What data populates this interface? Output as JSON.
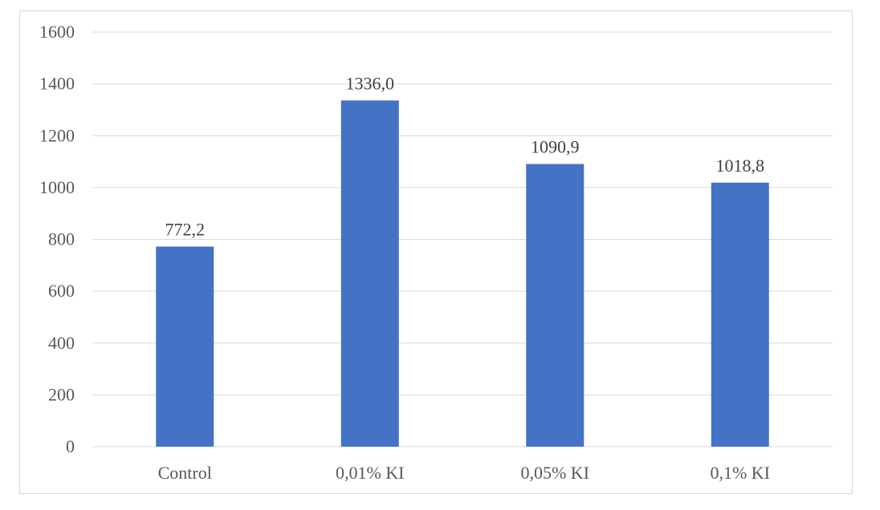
{
  "chart_data": {
    "type": "bar",
    "categories": [
      "Control",
      "0,01% KI",
      "0,05% KI",
      "0,1% KI"
    ],
    "values": [
      772.2,
      1336.0,
      1090.9,
      1018.8
    ],
    "data_labels": [
      "772,2",
      "1336,0",
      "1090,9",
      "1018,8"
    ],
    "title": "",
    "xlabel": "",
    "ylabel": "",
    "ylim": [
      0,
      1600
    ],
    "yticks": [
      0,
      200,
      400,
      600,
      800,
      1000,
      1200,
      1400,
      1600
    ],
    "grid": true,
    "legend": "none",
    "bar_color": "#4472C4"
  }
}
